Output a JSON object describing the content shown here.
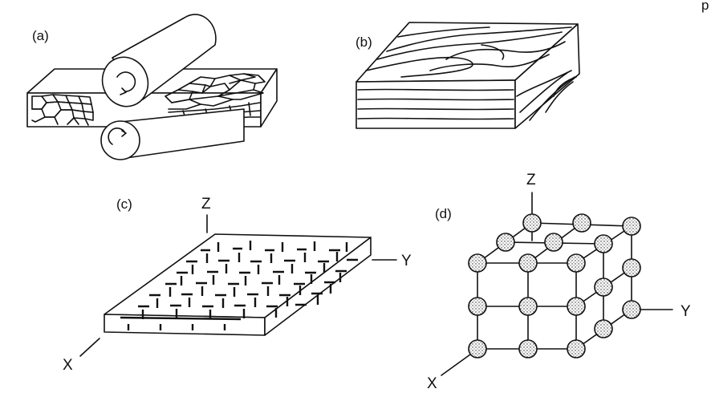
{
  "header": {
    "corner_text": "p"
  },
  "panels": [
    {
      "id": "a",
      "label": "(a)"
    },
    {
      "id": "b",
      "label": "(b)"
    },
    {
      "id": "c",
      "label": "(c)",
      "axes": {
        "z": "Z",
        "y": "Y",
        "x": "X"
      }
    },
    {
      "id": "d",
      "label": "(d)",
      "axes": {
        "z": "Z",
        "y": "Y",
        "x": "X"
      }
    }
  ],
  "colors": {
    "ink": "#111111",
    "background": "#ffffff"
  }
}
